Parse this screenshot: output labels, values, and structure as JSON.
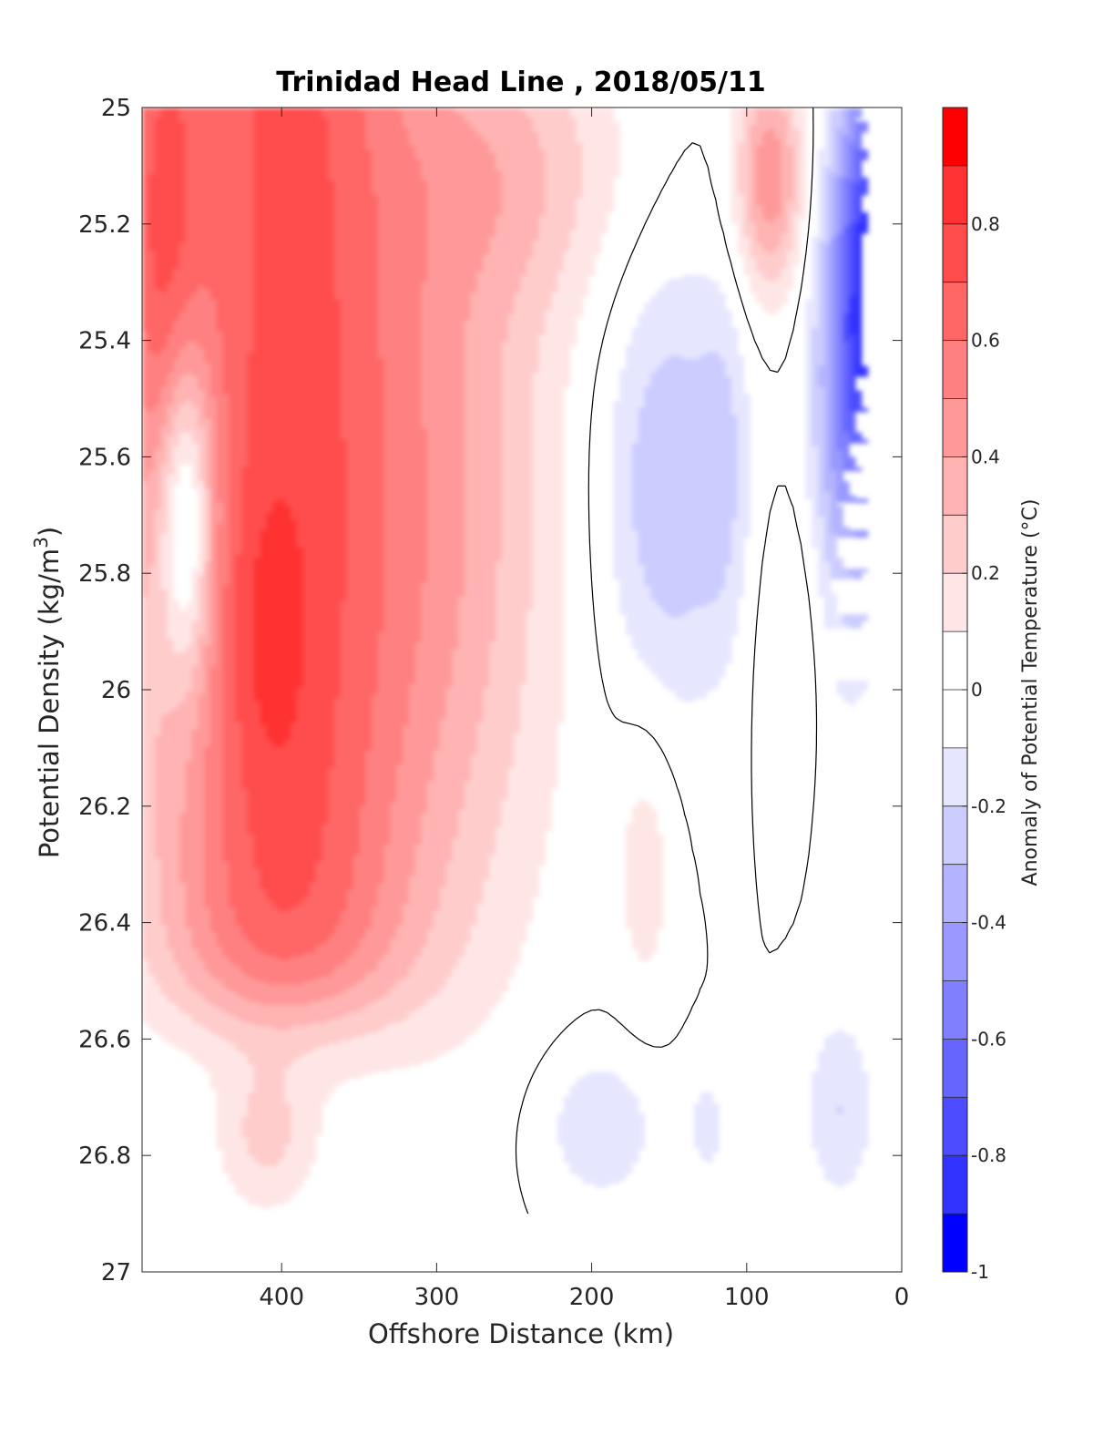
{
  "chart_data": {
    "type": "heatmap",
    "subtype": "filled-contour",
    "title": "Trinidad Head Line , 2018/05/11",
    "xlabel": "Offshore Distance (km)",
    "ylabel_main": "Potential Density (kg/m",
    "ylabel_sup": "3",
    "ylabel_close": ")",
    "xlim": [
      490,
      0
    ],
    "x_reversed": true,
    "ylim": [
      25,
      27
    ],
    "y_reversed": true,
    "x_ticks": [
      400,
      300,
      200,
      100,
      0
    ],
    "y_ticks": [
      25,
      25.2,
      25.4,
      25.6,
      25.8,
      26,
      26.2,
      26.4,
      26.6,
      26.8,
      27
    ],
    "y_tick_labels": [
      "25",
      "25.2",
      "25.4",
      "25.6",
      "25.8",
      "26",
      "26.2",
      "26.4",
      "26.6",
      "26.8",
      "27"
    ],
    "x_tick_labels": [
      "400",
      "300",
      "200",
      "100",
      "0"
    ],
    "colorbar": {
      "label": "Anomaly of Potential Temperature (°C)",
      "range": [
        -1,
        1
      ],
      "levels": [
        -1,
        -0.9,
        -0.8,
        -0.7,
        -0.6,
        -0.5,
        -0.4,
        -0.3,
        -0.2,
        -0.1,
        0,
        0.1,
        0.2,
        0.3,
        0.4,
        0.5,
        0.6,
        0.7,
        0.8,
        0.9,
        1
      ],
      "tick_values": [
        0.8,
        0.6,
        0.4,
        0.2,
        0,
        -0.2,
        -0.4,
        -0.6,
        -0.8,
        -1
      ],
      "tick_labels": [
        "0.8",
        "0.6",
        "0.4",
        "0.2",
        "0",
        "-0.2",
        "-0.4",
        "-0.6",
        "-0.8",
        "-1"
      ]
    },
    "data_extent": {
      "x": [
        490,
        20
      ],
      "y_bottom": 26.9
    },
    "zero_contour": "black thin line"
  },
  "colors": {
    "bin_neg_0.9": "#1a1aff",
    "bin_neg_0.8": "#3333ff",
    "bin_neg_0.7": "#4d4dff",
    "bin_neg_0.6": "#6666ff",
    "bin_neg_0.5": "#8080ff",
    "bin_neg_0.4": "#9999ff",
    "bin_neg_0.3": "#b3b3ff",
    "bin_neg_0.2": "#ccccff",
    "bin_neg_0.1": "#e6e6ff",
    "bin_zero": "#ffffff",
    "bin_pos_0.1": "#ffe6e6",
    "bin_pos_0.2": "#ffcccc",
    "bin_pos_0.3": "#ffb3b3",
    "bin_pos_0.4": "#ff9999",
    "bin_pos_0.5": "#ff8080",
    "bin_pos_0.6": "#ff6666",
    "bin_pos_0.7": "#ff4d4d",
    "bin_pos_0.8": "#ff3333",
    "bin_pos_0.9": "#ff1a1a"
  }
}
